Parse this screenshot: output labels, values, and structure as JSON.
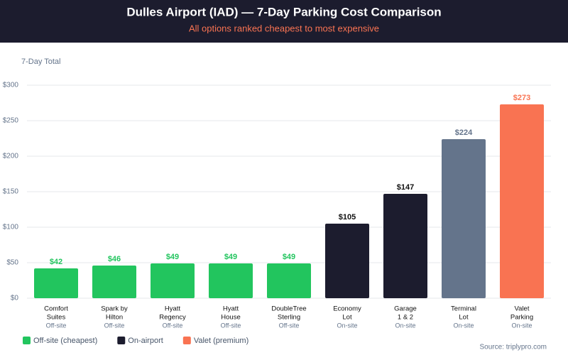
{
  "chart_data": {
    "type": "bar",
    "title": "Dulles Airport (IAD) — 7-Day Parking Cost Comparison",
    "subtitle": "All options ranked cheapest to most expensive",
    "y_label": "7-Day Total",
    "categories": [
      [
        "Comfort",
        "Suites"
      ],
      [
        "Spark by",
        "Hilton"
      ],
      [
        "Hyatt",
        "Regency"
      ],
      [
        "Hyatt",
        "House"
      ],
      [
        "DoubleTree",
        "Sterling"
      ],
      [
        "Economy",
        "Lot"
      ],
      [
        "Garage",
        "1 & 2"
      ],
      [
        "Terminal",
        "Lot"
      ],
      [
        "Valet",
        "Parking"
      ]
    ],
    "locations": [
      "Off-site",
      "Off-site",
      "Off-site",
      "Off-site",
      "Off-site",
      "On-site",
      "On-site",
      "On-site",
      "On-site"
    ],
    "values": [
      42,
      46,
      49,
      49,
      49,
      105,
      147,
      224,
      273
    ],
    "value_labels": [
      "$42",
      "$46",
      "$49",
      "$49",
      "$49",
      "$105",
      "$147",
      "$224",
      "$273"
    ],
    "colors": [
      "#22c55e",
      "#22c55e",
      "#22c55e",
      "#22c55e",
      "#22c55e",
      "#1c1c2e",
      "#1c1c2e",
      "#64748b",
      "#f97352"
    ],
    "ylim": [
      0,
      340
    ],
    "yticks": [
      {
        "value": 0,
        "label": "$0"
      },
      {
        "value": 50,
        "label": "$50"
      },
      {
        "value": 100,
        "label": "$100"
      },
      {
        "value": 150,
        "label": "$150"
      },
      {
        "value": 200,
        "label": "$200"
      },
      {
        "value": 250,
        "label": "$250"
      },
      {
        "value": 300,
        "label": "$300"
      }
    ],
    "grid": true,
    "legend": [
      {
        "label": "Off-site (cheapest)",
        "color": "#22c55e"
      },
      {
        "label": "On-airport",
        "color": "#1c1c2e"
      },
      {
        "label": "Valet (premium)",
        "color": "#f97352"
      }
    ],
    "source": "Source: triplypro.com"
  }
}
